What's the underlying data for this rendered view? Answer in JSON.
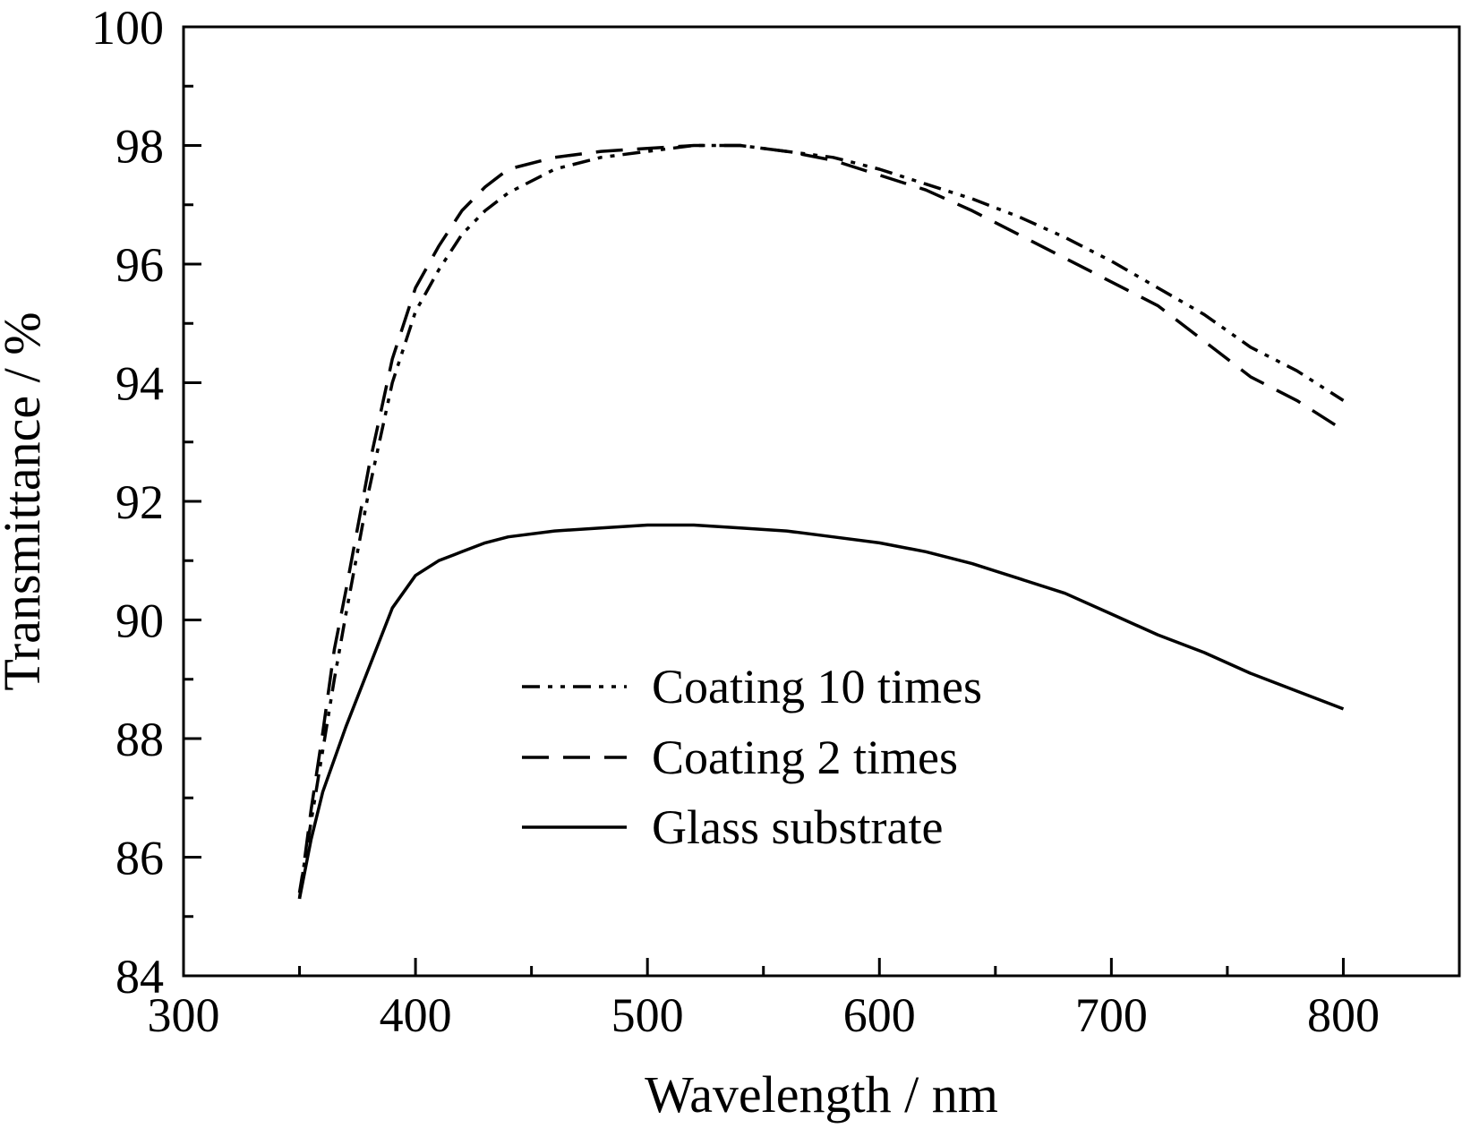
{
  "chart_data": {
    "type": "line",
    "xlabel": "Wavelength / nm",
    "ylabel": "Transmittance / %",
    "xlim": [
      300,
      850
    ],
    "ylim": [
      84,
      100
    ],
    "xticks": [
      300,
      400,
      500,
      600,
      700,
      800
    ],
    "yticks": [
      84,
      86,
      88,
      90,
      92,
      94,
      96,
      98,
      100
    ],
    "x_minor_step": 50,
    "y_minor_step": 1,
    "grid": false,
    "legend_position": "center-bottom",
    "series": [
      {
        "name": "Coating 10 times",
        "style": "dash-dot-dot",
        "x": [
          350,
          355,
          360,
          365,
          370,
          380,
          390,
          400,
          410,
          420,
          430,
          440,
          460,
          480,
          500,
          520,
          540,
          560,
          580,
          600,
          620,
          640,
          660,
          680,
          700,
          720,
          740,
          760,
          780,
          800
        ],
        "y": [
          85.4,
          86.6,
          87.8,
          89.0,
          90.1,
          92.2,
          94.0,
          95.2,
          95.9,
          96.5,
          96.9,
          97.2,
          97.6,
          97.8,
          97.9,
          98.0,
          98.0,
          97.9,
          97.8,
          97.6,
          97.35,
          97.1,
          96.8,
          96.45,
          96.05,
          95.6,
          95.15,
          94.6,
          94.2,
          93.7
        ]
      },
      {
        "name": "Coating 2 times",
        "style": "dashed",
        "x": [
          350,
          355,
          360,
          365,
          370,
          380,
          390,
          400,
          410,
          420,
          430,
          440,
          460,
          480,
          500,
          520,
          540,
          560,
          580,
          600,
          620,
          640,
          660,
          680,
          700,
          720,
          740,
          760,
          780,
          800
        ],
        "y": [
          85.3,
          86.8,
          88.1,
          89.5,
          90.5,
          92.6,
          94.4,
          95.6,
          96.3,
          96.9,
          97.3,
          97.6,
          97.8,
          97.9,
          97.95,
          98.0,
          98.0,
          97.9,
          97.75,
          97.5,
          97.25,
          96.9,
          96.5,
          96.1,
          95.7,
          95.3,
          94.7,
          94.1,
          93.7,
          93.2
        ]
      },
      {
        "name": "Glass substrate",
        "style": "solid",
        "x": [
          350,
          355,
          360,
          370,
          380,
          390,
          400,
          410,
          420,
          430,
          440,
          460,
          480,
          500,
          520,
          540,
          560,
          580,
          600,
          620,
          640,
          660,
          680,
          700,
          720,
          740,
          760,
          780,
          800
        ],
        "y": [
          85.3,
          86.3,
          87.1,
          88.2,
          89.2,
          90.2,
          90.75,
          91.0,
          91.15,
          91.3,
          91.4,
          91.5,
          91.55,
          91.6,
          91.6,
          91.55,
          91.5,
          91.4,
          91.3,
          91.15,
          90.95,
          90.7,
          90.45,
          90.1,
          89.75,
          89.45,
          89.1,
          88.8,
          88.5
        ]
      }
    ]
  }
}
